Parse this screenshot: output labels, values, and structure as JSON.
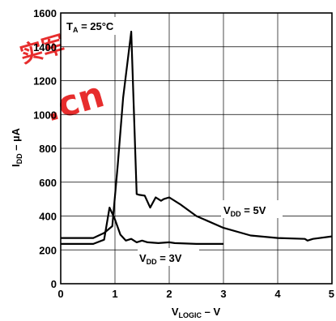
{
  "watermark": {
    "text": ".cn",
    "glyphs": "实军",
    "color": "#e51c1c"
  },
  "chart_data": {
    "type": "line",
    "annotation": {
      "main": "T",
      "sub": "A",
      "rest": " = 25°C"
    },
    "xlabel": {
      "main": "V",
      "sub": "LOGIC",
      "rest": " – V"
    },
    "ylabel": {
      "main": "I",
      "sub": "DD",
      "rest": " – µA"
    },
    "xlim": [
      0,
      5
    ],
    "ylim": [
      0,
      1600
    ],
    "xticks": [
      "0",
      "1",
      "2",
      "3",
      "4",
      "5"
    ],
    "yticks": [
      "0",
      "200",
      "400",
      "600",
      "800",
      "1000",
      "1200",
      "1400",
      "1600"
    ],
    "grid": true,
    "series": [
      {
        "name": {
          "main": "V",
          "sub": "DD",
          "rest": " = 5V"
        },
        "x": [
          0,
          0.6,
          0.8,
          0.95,
          1.05,
          1.15,
          1.3,
          1.4,
          1.45,
          1.55,
          1.65,
          1.75,
          1.85,
          1.9,
          2.0,
          2.2,
          2.5,
          3.0,
          3.5,
          4.0,
          4.5,
          4.55,
          4.65,
          5.0
        ],
        "y": [
          270,
          270,
          300,
          340,
          700,
          1100,
          1490,
          530,
          525,
          520,
          450,
          510,
          490,
          500,
          510,
          470,
          400,
          330,
          285,
          270,
          265,
          255,
          265,
          280
        ]
      },
      {
        "name": {
          "main": "V",
          "sub": "DD",
          "rest": " = 3V"
        },
        "x": [
          0,
          0.6,
          0.8,
          0.9,
          1.0,
          1.1,
          1.2,
          1.3,
          1.4,
          1.5,
          1.6,
          1.8,
          2.0,
          2.1,
          2.5,
          3.0
        ],
        "y": [
          235,
          235,
          260,
          450,
          380,
          290,
          255,
          265,
          245,
          255,
          245,
          240,
          245,
          240,
          235,
          235
        ]
      }
    ]
  }
}
